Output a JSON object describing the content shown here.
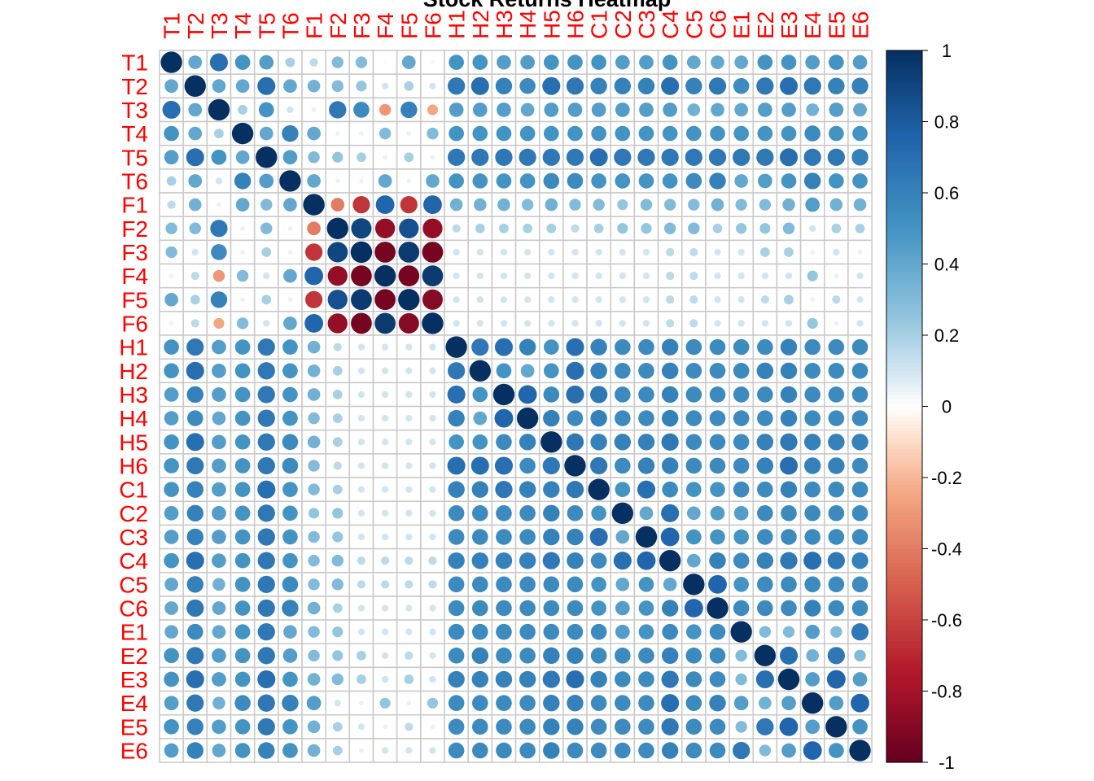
{
  "chart_data": {
    "type": "heatmap",
    "title": "Stock Returns Heatmap",
    "labels": [
      "T1",
      "T2",
      "T3",
      "T4",
      "T5",
      "T6",
      "F1",
      "F2",
      "F3",
      "F4",
      "F5",
      "F6",
      "H1",
      "H2",
      "H3",
      "H4",
      "H5",
      "H6",
      "C1",
      "C2",
      "C3",
      "C4",
      "C5",
      "C6",
      "E1",
      "E2",
      "E3",
      "E4",
      "E5",
      "E6"
    ],
    "matrix": [
      [
        1.0,
        0.4,
        0.7,
        0.5,
        0.45,
        0.2,
        0.15,
        0.3,
        0.3,
        0.02,
        0.4,
        0.03,
        0.5,
        0.5,
        0.45,
        0.45,
        0.5,
        0.5,
        0.5,
        0.45,
        0.45,
        0.5,
        0.4,
        0.4,
        0.4,
        0.5,
        0.5,
        0.45,
        0.5,
        0.45
      ],
      [
        0.4,
        1.0,
        0.4,
        0.4,
        0.7,
        0.4,
        0.35,
        0.3,
        0.25,
        0.1,
        0.2,
        0.1,
        0.65,
        0.7,
        0.6,
        0.55,
        0.7,
        0.65,
        0.6,
        0.6,
        0.6,
        0.7,
        0.6,
        0.65,
        0.55,
        0.65,
        0.7,
        0.65,
        0.6,
        0.6
      ],
      [
        0.7,
        0.4,
        1.0,
        0.2,
        0.5,
        0.1,
        0.05,
        0.65,
        0.55,
        -0.3,
        0.6,
        -0.25,
        0.45,
        0.45,
        0.45,
        0.4,
        0.45,
        0.45,
        0.45,
        0.45,
        0.45,
        0.45,
        0.35,
        0.4,
        0.4,
        0.45,
        0.45,
        0.35,
        0.45,
        0.4
      ],
      [
        0.5,
        0.4,
        0.2,
        1.0,
        0.4,
        0.6,
        0.4,
        0.05,
        0.05,
        0.3,
        0.05,
        0.3,
        0.5,
        0.5,
        0.5,
        0.5,
        0.5,
        0.5,
        0.5,
        0.5,
        0.5,
        0.5,
        0.5,
        0.5,
        0.5,
        0.5,
        0.5,
        0.55,
        0.5,
        0.5
      ],
      [
        0.45,
        0.7,
        0.5,
        0.4,
        1.0,
        0.45,
        0.3,
        0.25,
        0.2,
        0.05,
        0.2,
        0.05,
        0.65,
        0.65,
        0.65,
        0.65,
        0.65,
        0.65,
        0.7,
        0.65,
        0.65,
        0.65,
        0.65,
        0.65,
        0.65,
        0.65,
        0.7,
        0.65,
        0.65,
        0.6
      ],
      [
        0.2,
        0.4,
        0.1,
        0.6,
        0.45,
        1.0,
        0.4,
        0.05,
        -0.05,
        0.4,
        0.05,
        0.4,
        0.5,
        0.5,
        0.5,
        0.5,
        0.55,
        0.55,
        0.5,
        0.5,
        0.5,
        0.5,
        0.55,
        0.6,
        0.4,
        0.45,
        0.5,
        0.6,
        0.5,
        0.5
      ],
      [
        0.15,
        0.35,
        0.05,
        0.4,
        0.3,
        0.4,
        1.0,
        -0.4,
        -0.65,
        0.75,
        -0.65,
        0.75,
        0.35,
        0.35,
        0.35,
        0.3,
        0.35,
        0.3,
        0.3,
        0.25,
        0.3,
        0.3,
        0.3,
        0.35,
        0.3,
        0.3,
        0.35,
        0.45,
        0.35,
        0.35
      ],
      [
        0.3,
        0.3,
        0.65,
        0.05,
        0.3,
        0.05,
        -0.4,
        1.0,
        0.9,
        -0.85,
        0.85,
        -0.85,
        0.15,
        0.2,
        0.2,
        0.2,
        0.2,
        0.15,
        0.2,
        0.25,
        0.25,
        0.3,
        0.3,
        0.2,
        0.25,
        0.25,
        0.3,
        0.1,
        0.2,
        0.2
      ],
      [
        0.3,
        0.1,
        0.55,
        0.05,
        0.2,
        -0.05,
        -0.65,
        0.9,
        1.0,
        -0.95,
        0.95,
        -0.95,
        0.1,
        0.1,
        0.1,
        0.1,
        0.1,
        0.1,
        0.1,
        0.1,
        0.1,
        0.15,
        0.15,
        0.1,
        0.1,
        0.2,
        0.2,
        0.05,
        0.1,
        0.05
      ],
      [
        -0.05,
        0.15,
        -0.3,
        0.3,
        0.1,
        0.4,
        0.75,
        -0.85,
        -0.95,
        1.0,
        -0.95,
        0.95,
        0.1,
        0.1,
        0.1,
        0.1,
        0.1,
        0.1,
        0.1,
        0.1,
        0.1,
        0.15,
        0.15,
        0.1,
        0.1,
        0.1,
        0.1,
        0.25,
        0.05,
        0.1
      ],
      [
        0.4,
        0.2,
        0.6,
        0.05,
        0.2,
        0.05,
        -0.65,
        0.85,
        0.95,
        -0.95,
        1.0,
        -0.9,
        0.1,
        0.1,
        0.1,
        0.1,
        0.1,
        0.1,
        0.1,
        0.1,
        0.1,
        0.15,
        0.15,
        0.1,
        0.1,
        0.15,
        0.2,
        0.05,
        0.15,
        0.1
      ],
      [
        -0.05,
        0.15,
        -0.25,
        0.3,
        0.1,
        0.4,
        0.75,
        -0.85,
        -0.95,
        0.95,
        -0.9,
        1.0,
        0.1,
        0.1,
        0.1,
        0.1,
        0.1,
        0.1,
        0.1,
        0.1,
        0.1,
        0.15,
        0.15,
        0.1,
        0.1,
        0.1,
        0.1,
        0.25,
        0.05,
        0.1
      ],
      [
        0.5,
        0.65,
        0.45,
        0.5,
        0.65,
        0.5,
        0.35,
        0.15,
        0.1,
        0.1,
        0.1,
        0.1,
        1.0,
        0.65,
        0.7,
        0.6,
        0.5,
        0.7,
        0.6,
        0.55,
        0.55,
        0.6,
        0.55,
        0.55,
        0.55,
        0.55,
        0.6,
        0.55,
        0.55,
        0.55
      ],
      [
        0.5,
        0.7,
        0.45,
        0.5,
        0.65,
        0.5,
        0.35,
        0.2,
        0.1,
        0.1,
        0.1,
        0.1,
        0.65,
        1.0,
        0.5,
        0.4,
        0.5,
        0.7,
        0.6,
        0.55,
        0.55,
        0.6,
        0.55,
        0.55,
        0.55,
        0.6,
        0.6,
        0.55,
        0.55,
        0.55
      ],
      [
        0.45,
        0.6,
        0.45,
        0.5,
        0.65,
        0.5,
        0.35,
        0.2,
        0.1,
        0.1,
        0.1,
        0.1,
        0.7,
        0.5,
        1.0,
        0.75,
        0.55,
        0.7,
        0.65,
        0.55,
        0.55,
        0.6,
        0.55,
        0.55,
        0.55,
        0.55,
        0.6,
        0.55,
        0.55,
        0.55
      ],
      [
        0.45,
        0.55,
        0.4,
        0.5,
        0.65,
        0.5,
        0.3,
        0.2,
        0.1,
        0.1,
        0.1,
        0.1,
        0.6,
        0.4,
        0.75,
        1.0,
        0.6,
        0.55,
        0.6,
        0.55,
        0.55,
        0.6,
        0.55,
        0.55,
        0.55,
        0.55,
        0.6,
        0.55,
        0.55,
        0.55
      ],
      [
        0.5,
        0.7,
        0.45,
        0.5,
        0.65,
        0.55,
        0.35,
        0.2,
        0.1,
        0.1,
        0.1,
        0.1,
        0.5,
        0.5,
        0.55,
        0.6,
        1.0,
        0.65,
        0.6,
        0.6,
        0.6,
        0.65,
        0.55,
        0.55,
        0.55,
        0.6,
        0.65,
        0.6,
        0.6,
        0.6
      ],
      [
        0.5,
        0.65,
        0.45,
        0.5,
        0.65,
        0.55,
        0.3,
        0.15,
        0.1,
        0.1,
        0.1,
        0.1,
        0.7,
        0.7,
        0.7,
        0.55,
        0.65,
        1.0,
        0.65,
        0.55,
        0.6,
        0.6,
        0.55,
        0.55,
        0.55,
        0.6,
        0.7,
        0.6,
        0.6,
        0.55
      ],
      [
        0.5,
        0.6,
        0.45,
        0.5,
        0.7,
        0.5,
        0.3,
        0.2,
        0.1,
        0.1,
        0.1,
        0.1,
        0.6,
        0.6,
        0.65,
        0.6,
        0.6,
        0.65,
        1.0,
        0.5,
        0.7,
        0.55,
        0.5,
        0.5,
        0.55,
        0.55,
        0.6,
        0.55,
        0.55,
        0.55
      ],
      [
        0.45,
        0.6,
        0.45,
        0.5,
        0.65,
        0.5,
        0.25,
        0.25,
        0.1,
        0.1,
        0.1,
        0.1,
        0.55,
        0.55,
        0.55,
        0.55,
        0.6,
        0.55,
        0.5,
        1.0,
        0.4,
        0.7,
        0.4,
        0.45,
        0.45,
        0.55,
        0.55,
        0.55,
        0.55,
        0.55
      ],
      [
        0.45,
        0.6,
        0.45,
        0.5,
        0.65,
        0.5,
        0.3,
        0.25,
        0.1,
        0.1,
        0.1,
        0.1,
        0.55,
        0.55,
        0.55,
        0.55,
        0.6,
        0.6,
        0.7,
        0.4,
        1.0,
        0.75,
        0.5,
        0.5,
        0.5,
        0.55,
        0.55,
        0.55,
        0.55,
        0.55
      ],
      [
        0.5,
        0.7,
        0.45,
        0.5,
        0.65,
        0.5,
        0.3,
        0.3,
        0.15,
        0.15,
        0.15,
        0.15,
        0.6,
        0.6,
        0.6,
        0.6,
        0.65,
        0.6,
        0.55,
        0.7,
        0.75,
        1.0,
        0.4,
        0.6,
        0.55,
        0.6,
        0.65,
        0.7,
        0.65,
        0.6
      ],
      [
        0.4,
        0.6,
        0.35,
        0.5,
        0.65,
        0.55,
        0.3,
        0.3,
        0.15,
        0.15,
        0.15,
        0.15,
        0.55,
        0.55,
        0.55,
        0.55,
        0.55,
        0.55,
        0.5,
        0.4,
        0.5,
        0.4,
        1.0,
        0.75,
        0.5,
        0.55,
        0.55,
        0.55,
        0.55,
        0.55
      ],
      [
        0.4,
        0.65,
        0.4,
        0.5,
        0.65,
        0.6,
        0.35,
        0.2,
        0.1,
        0.1,
        0.1,
        0.1,
        0.55,
        0.55,
        0.55,
        0.55,
        0.55,
        0.55,
        0.5,
        0.45,
        0.5,
        0.6,
        0.75,
        1.0,
        0.55,
        0.55,
        0.55,
        0.6,
        0.55,
        0.55
      ],
      [
        0.4,
        0.55,
        0.4,
        0.5,
        0.65,
        0.4,
        0.3,
        0.25,
        0.1,
        0.1,
        0.1,
        0.1,
        0.55,
        0.55,
        0.55,
        0.55,
        0.55,
        0.55,
        0.55,
        0.45,
        0.5,
        0.55,
        0.5,
        0.55,
        1.0,
        0.3,
        0.3,
        0.45,
        0.3,
        0.65
      ],
      [
        0.5,
        0.65,
        0.45,
        0.5,
        0.65,
        0.45,
        0.3,
        0.25,
        0.2,
        0.1,
        0.15,
        0.1,
        0.55,
        0.6,
        0.55,
        0.55,
        0.6,
        0.6,
        0.55,
        0.55,
        0.55,
        0.6,
        0.55,
        0.55,
        0.3,
        1.0,
        0.7,
        0.35,
        0.65,
        0.3
      ],
      [
        0.5,
        0.7,
        0.45,
        0.5,
        0.7,
        0.5,
        0.35,
        0.3,
        0.2,
        0.1,
        0.2,
        0.1,
        0.6,
        0.6,
        0.6,
        0.6,
        0.65,
        0.7,
        0.6,
        0.55,
        0.55,
        0.65,
        0.55,
        0.55,
        0.3,
        0.7,
        1.0,
        0.45,
        0.75,
        0.45
      ],
      [
        0.45,
        0.65,
        0.35,
        0.55,
        0.65,
        0.6,
        0.45,
        0.1,
        0.05,
        0.25,
        0.05,
        0.25,
        0.55,
        0.55,
        0.55,
        0.55,
        0.6,
        0.6,
        0.55,
        0.55,
        0.55,
        0.7,
        0.55,
        0.6,
        0.45,
        0.35,
        0.45,
        1.0,
        0.45,
        0.75
      ],
      [
        0.5,
        0.6,
        0.45,
        0.5,
        0.65,
        0.5,
        0.35,
        0.2,
        0.1,
        0.05,
        0.15,
        0.05,
        0.55,
        0.55,
        0.55,
        0.55,
        0.6,
        0.6,
        0.55,
        0.55,
        0.55,
        0.65,
        0.55,
        0.55,
        0.3,
        0.65,
        0.75,
        0.45,
        1.0,
        0.5
      ],
      [
        0.45,
        0.6,
        0.4,
        0.5,
        0.6,
        0.5,
        0.35,
        0.2,
        0.05,
        0.1,
        0.1,
        0.1,
        0.55,
        0.55,
        0.55,
        0.55,
        0.6,
        0.55,
        0.55,
        0.55,
        0.55,
        0.6,
        0.55,
        0.55,
        0.65,
        0.3,
        0.45,
        0.75,
        0.5,
        1.0
      ]
    ],
    "colorbar": {
      "range": [
        -1,
        1
      ],
      "ticks": [
        "1",
        "0.8",
        "0.6",
        "0.4",
        "0.2",
        "0",
        "-0.2",
        "-0.4",
        "-0.6",
        "-0.8",
        "-1"
      ],
      "tick_values": [
        1,
        0.8,
        0.6,
        0.4,
        0.2,
        0,
        -0.2,
        -0.4,
        -0.6,
        -0.8,
        -1
      ],
      "color_stops": [
        {
          "value": -1.0,
          "color": "#67001f"
        },
        {
          "value": -0.75,
          "color": "#b2182b"
        },
        {
          "value": -0.5,
          "color": "#d6604d"
        },
        {
          "value": -0.25,
          "color": "#f4a582"
        },
        {
          "value": -0.1,
          "color": "#fddbc7"
        },
        {
          "value": 0.0,
          "color": "#ffffff"
        },
        {
          "value": 0.1,
          "color": "#d1e5f0"
        },
        {
          "value": 0.25,
          "color": "#92c5de"
        },
        {
          "value": 0.5,
          "color": "#4393c3"
        },
        {
          "value": 0.75,
          "color": "#2166ac"
        },
        {
          "value": 1.0,
          "color": "#053061"
        }
      ]
    },
    "label_color": "#ff0000",
    "grid": true,
    "legend_placement": "right"
  }
}
